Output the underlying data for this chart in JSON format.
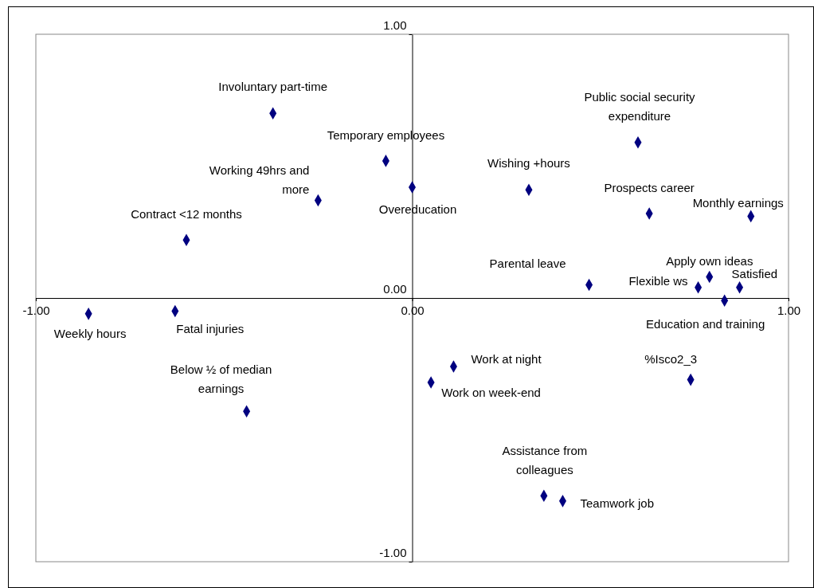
{
  "chart_data": {
    "type": "scatter",
    "x": [
      -0.37,
      -0.07,
      -0.25,
      0.0,
      -0.6,
      0.31,
      0.6,
      0.63,
      0.9,
      0.47,
      0.79,
      0.76,
      0.87,
      0.83,
      -0.86,
      -0.63,
      -0.44,
      0.11,
      0.05,
      0.74,
      0.35,
      0.4
    ],
    "series": [
      {
        "color": "#000080",
        "values": [
          0.7,
          0.52,
          0.37,
          0.42,
          0.22,
          0.41,
          0.59,
          0.32,
          0.31,
          0.05,
          0.08,
          0.04,
          0.04,
          -0.01,
          -0.06,
          -0.05,
          -0.43,
          -0.26,
          -0.32,
          -0.31,
          -0.75,
          -0.77
        ]
      }
    ],
    "xlim": [
      -1,
      1
    ],
    "ylim": [
      -1,
      1
    ],
    "xticks": [
      {
        "value": -1,
        "label": "-1.00"
      },
      {
        "value": 0,
        "label": "0.00"
      },
      {
        "value": 1,
        "label": "1.00"
      }
    ],
    "yticks": [
      {
        "value": -1,
        "label": "-1.00"
      },
      {
        "value": 0,
        "label": "0.00"
      },
      {
        "value": 1,
        "label": "1.00"
      }
    ],
    "marker": "diamond",
    "grid": false,
    "annotations": [
      {
        "text": "Involuntary part-time",
        "x": -0.37,
        "y": 0.7
      },
      {
        "text": "Temporary employees",
        "x": -0.07,
        "y": 0.52
      },
      {
        "text": "Working 49hrs and more",
        "x": -0.25,
        "y": 0.37
      },
      {
        "text": "Overeducation",
        "x": 0.0,
        "y": 0.42
      },
      {
        "text": "Contract <12 months",
        "x": -0.6,
        "y": 0.22
      },
      {
        "text": "Wishing +hours",
        "x": 0.31,
        "y": 0.41
      },
      {
        "text": "Public social security expenditure",
        "x": 0.6,
        "y": 0.59
      },
      {
        "text": "Prospects career",
        "x": 0.63,
        "y": 0.32
      },
      {
        "text": "Monthly earnings",
        "x": 0.9,
        "y": 0.31
      },
      {
        "text": "Parental leave",
        "x": 0.47,
        "y": 0.05
      },
      {
        "text": "Apply own ideas",
        "x": 0.79,
        "y": 0.08
      },
      {
        "text": "Flexible ws",
        "x": 0.76,
        "y": 0.04
      },
      {
        "text": "Satisfied",
        "x": 0.87,
        "y": 0.04
      },
      {
        "text": "Education and training",
        "x": 0.83,
        "y": -0.01
      },
      {
        "text": "Weekly hours",
        "x": -0.86,
        "y": -0.06
      },
      {
        "text": "Fatal injuries",
        "x": -0.63,
        "y": -0.05
      },
      {
        "text": "Below ½ of median earnings",
        "x": -0.44,
        "y": -0.43
      },
      {
        "text": "Work at night",
        "x": 0.11,
        "y": -0.26
      },
      {
        "text": "Work on week-end",
        "x": 0.05,
        "y": -0.32
      },
      {
        "text": "%Isco2_3",
        "x": 0.74,
        "y": -0.31
      },
      {
        "text": "Assistance from colleagues",
        "x": 0.35,
        "y": -0.75
      },
      {
        "text": "Teamwork job",
        "x": 0.4,
        "y": -0.77
      }
    ]
  }
}
